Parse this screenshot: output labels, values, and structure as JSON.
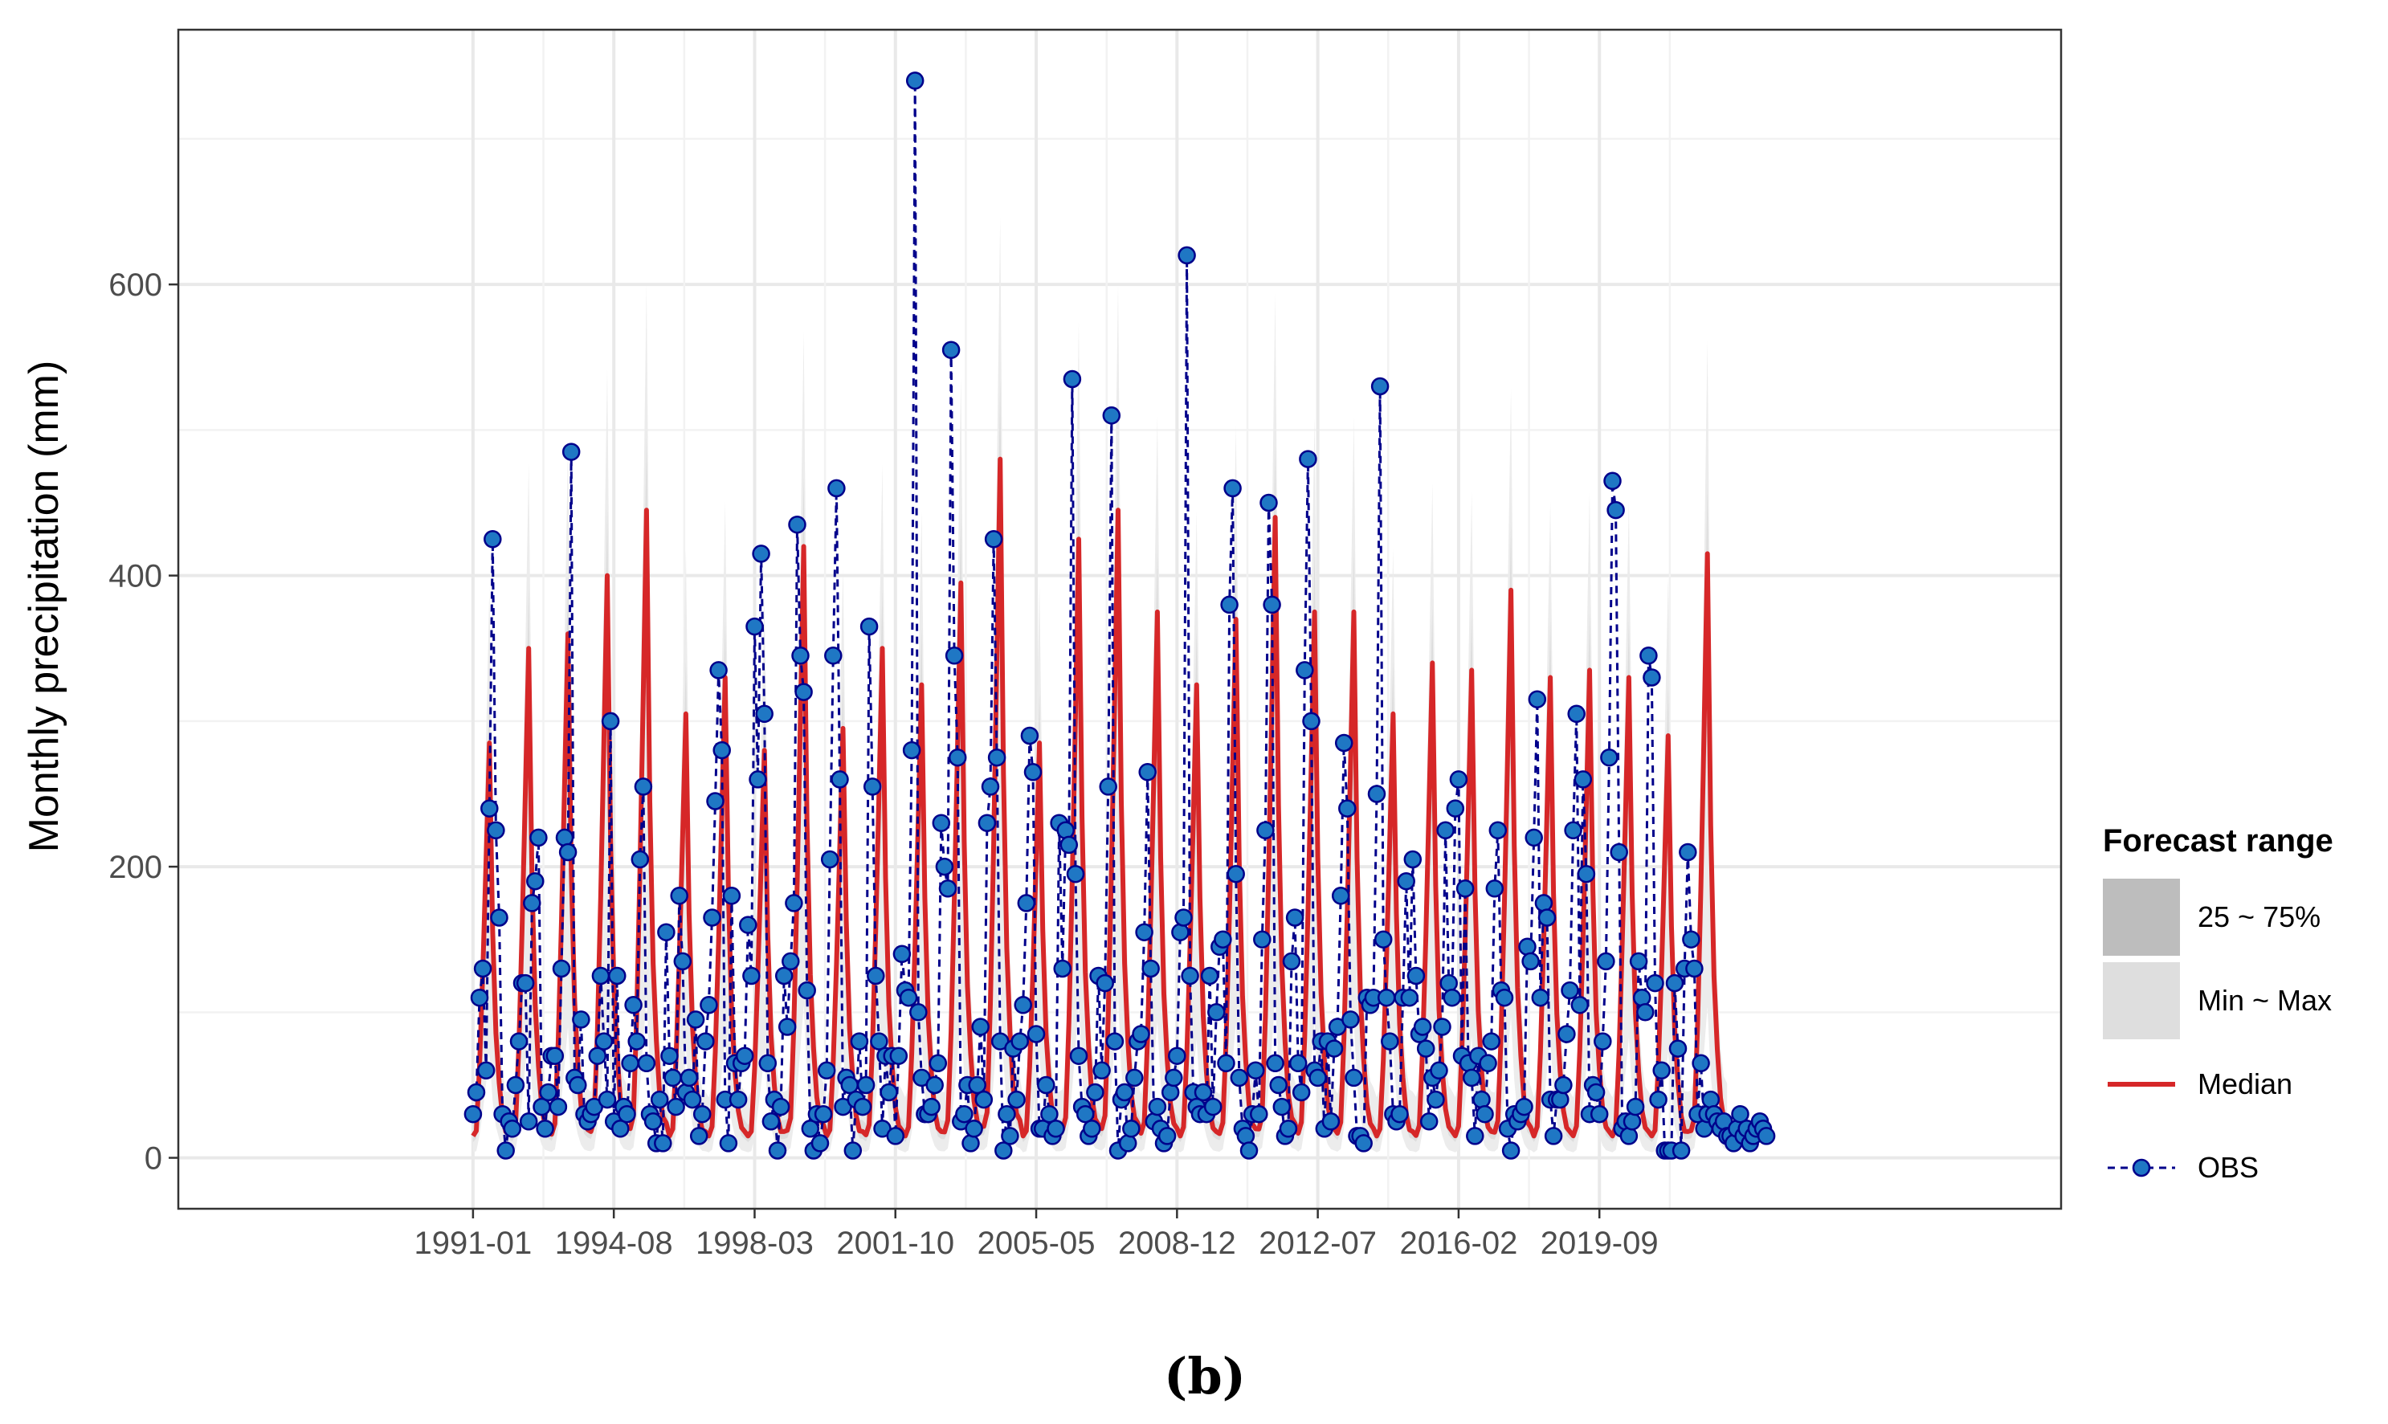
{
  "chart_data": {
    "type": "line",
    "title": "",
    "xlabel": "",
    "ylabel": "Monthly precipitation (mm)",
    "caption": "(b)",
    "ylim": [
      -35,
      775
    ],
    "y_ticks": [
      0,
      200,
      400,
      600
    ],
    "x_ticks": [
      "1991-01",
      "1994-08",
      "1998-03",
      "2001-10",
      "2005-05",
      "2008-12",
      "2012-07",
      "2016-02",
      "2019-09"
    ],
    "x_start": "1991-01",
    "x_end": "2023-12",
    "grid": true,
    "legend": {
      "title": "Forecast range",
      "position": "right",
      "entries": [
        {
          "label": "25 ~ 75%",
          "kind": "band",
          "color": "#bdbdbd"
        },
        {
          "label": "Min ~ Max",
          "kind": "band",
          "color": "#dedede"
        },
        {
          "label": "Median",
          "kind": "line",
          "color": "#d62728"
        },
        {
          "label": "OBS",
          "kind": "dashed-point",
          "color": "#00008b",
          "fill": "#1f77c4"
        }
      ]
    },
    "series": [
      {
        "name": "OBS",
        "years": [
          1991,
          1992,
          1993,
          1994,
          1995,
          1996,
          1997,
          1998,
          1999,
          2000,
          2001,
          2002,
          2003,
          2004,
          2005,
          2006,
          2007,
          2008,
          2009,
          2010,
          2011,
          2012,
          2013,
          2014,
          2015,
          2016,
          2017,
          2018,
          2019,
          2020,
          2021,
          2022,
          2023
        ],
        "values_by_year": [
          [
            30,
            45,
            110,
            130,
            60,
            240,
            425,
            225,
            165,
            30,
            5,
            25
          ],
          [
            20,
            50,
            80,
            120,
            120,
            25,
            175,
            190,
            220,
            35,
            20,
            45
          ],
          [
            70,
            70,
            35,
            130,
            220,
            210,
            485,
            55,
            50,
            95,
            30,
            25
          ],
          [
            30,
            35,
            70,
            125,
            80,
            40,
            300,
            25,
            125,
            20,
            35,
            30
          ],
          [
            65,
            105,
            80,
            205,
            255,
            65,
            30,
            25,
            10,
            40,
            10,
            155
          ],
          [
            70,
            55,
            35,
            180,
            135,
            45,
            55,
            40,
            95,
            15,
            30,
            80
          ],
          [
            105,
            165,
            245,
            335,
            280,
            40,
            10,
            180,
            65,
            40,
            65,
            70
          ],
          [
            160,
            125,
            365,
            260,
            415,
            305,
            65,
            25,
            40,
            5,
            35,
            125
          ],
          [
            90,
            135,
            175,
            435,
            345,
            320,
            115,
            20,
            5,
            30,
            10,
            30
          ],
          [
            60,
            205,
            345,
            460,
            260,
            35,
            55,
            50,
            5,
            40,
            80,
            35
          ],
          [
            50,
            365,
            255,
            125,
            80,
            20,
            70,
            45,
            70,
            15,
            70,
            140
          ],
          [
            115,
            110,
            280,
            740,
            100,
            55,
            30,
            30,
            35,
            50,
            65,
            230
          ],
          [
            200,
            185,
            555,
            345,
            275,
            25,
            30,
            50,
            10,
            20,
            50,
            90
          ],
          [
            40,
            230,
            255,
            425,
            275,
            80,
            5,
            30,
            15,
            75,
            40,
            80
          ],
          [
            105,
            175,
            290,
            265,
            85,
            20,
            20,
            50,
            30,
            15,
            20,
            230
          ],
          [
            130,
            225,
            215,
            535,
            195,
            70,
            35,
            30,
            15,
            20,
            45,
            125
          ],
          [
            60,
            120,
            255,
            510,
            80,
            5,
            40,
            45,
            10,
            20,
            55,
            80
          ],
          [
            85,
            155,
            265,
            130,
            25,
            35,
            20,
            10,
            15,
            45,
            55,
            70
          ],
          [
            155,
            165,
            620,
            125,
            45,
            35,
            30,
            45,
            30,
            125,
            35,
            100
          ],
          [
            145,
            150,
            65,
            380,
            460,
            195,
            55,
            20,
            15,
            5,
            30,
            60
          ],
          [
            30,
            150,
            225,
            450,
            380,
            65,
            50,
            35,
            15,
            20,
            135,
            165
          ],
          [
            65,
            45,
            335,
            480,
            300,
            60,
            55,
            80,
            20,
            80,
            25,
            75
          ],
          [
            90,
            180,
            285,
            240,
            95,
            55,
            15,
            15,
            10,
            110,
            105,
            110
          ],
          [
            250,
            530,
            150,
            110,
            80,
            30,
            25,
            30,
            110,
            190,
            110,
            205
          ],
          [
            125,
            85,
            90,
            75,
            25,
            55,
            40,
            60,
            90,
            225,
            120,
            110
          ],
          [
            240,
            260,
            70,
            185,
            65,
            55,
            15,
            70,
            40,
            30,
            65,
            80
          ],
          [
            185,
            225,
            115,
            110,
            20,
            5,
            30,
            25,
            30,
            35,
            145,
            135
          ],
          [
            220,
            315,
            110,
            175,
            165,
            40,
            15,
            40,
            40,
            50,
            85,
            115
          ],
          [
            225,
            305,
            105,
            260,
            195,
            30,
            50,
            45,
            30,
            80,
            135,
            275
          ],
          [
            465,
            445,
            210,
            20,
            25,
            15,
            25,
            35,
            135,
            110,
            100,
            345
          ],
          [
            330,
            120,
            40,
            60,
            5,
            5,
            5,
            120,
            75,
            5,
            130,
            210
          ],
          [
            150,
            130,
            30,
            65,
            20,
            30,
            40,
            30,
            25,
            20,
            25,
            15
          ],
          [
            15,
            10,
            20,
            30,
            15,
            20,
            10,
            15,
            20,
            25,
            20,
            15
          ]
        ]
      },
      {
        "name": "Median",
        "years": [
          1991,
          1992,
          1993,
          1994,
          1995,
          1996,
          1997,
          1998,
          1999,
          2000,
          2001,
          2002,
          2003,
          2004,
          2005,
          2006,
          2007,
          2008,
          2009,
          2010,
          2011,
          2012,
          2013,
          2014,
          2015,
          2016,
          2017,
          2018,
          2019,
          2020,
          2021,
          2022
        ],
        "peaks": [
          285,
          350,
          360,
          400,
          445,
          305,
          330,
          280,
          420,
          295,
          350,
          325,
          395,
          480,
          285,
          425,
          445,
          375,
          325,
          370,
          440,
          375,
          375,
          305,
          340,
          335,
          390,
          330,
          335,
          330,
          290,
          415
        ]
      }
    ]
  }
}
